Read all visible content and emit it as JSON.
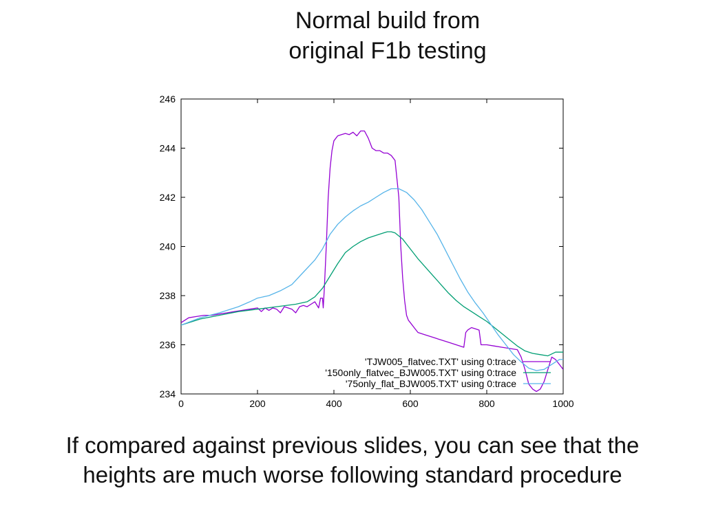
{
  "slide": {
    "title_lines": [
      "Normal build from",
      "original F1b testing"
    ],
    "caption_lines": [
      "If compared against previous slides, you can see that the",
      "heights are much worse following standard procedure"
    ]
  },
  "chart_data": {
    "type": "line",
    "title": "",
    "xlabel": "",
    "ylabel": "",
    "xlim": [
      0,
      1000
    ],
    "ylim": [
      234,
      246
    ],
    "x_ticks": [
      0,
      200,
      400,
      600,
      800,
      1000
    ],
    "x_tick_labels": [
      "0",
      "200",
      "400",
      "600",
      "800",
      "1000"
    ],
    "y_ticks": [
      234,
      236,
      238,
      240,
      242,
      244,
      246
    ],
    "y_tick_labels": [
      "234",
      "236",
      "238",
      "240",
      "242",
      "244",
      "246"
    ],
    "grid": false,
    "legend_position": "bottom-right",
    "series": [
      {
        "name": "'TJW005_flatvec.TXT' using 0:trace",
        "color": "#9400d3",
        "x": [
          0,
          20,
          40,
          60,
          80,
          100,
          120,
          140,
          160,
          180,
          200,
          210,
          220,
          230,
          240,
          250,
          260,
          270,
          280,
          290,
          300,
          310,
          320,
          330,
          340,
          350,
          360,
          365,
          370,
          372,
          375,
          380,
          385,
          390,
          395,
          400,
          410,
          420,
          430,
          440,
          450,
          460,
          470,
          480,
          490,
          500,
          510,
          520,
          530,
          540,
          550,
          560,
          570,
          575,
          580,
          585,
          590,
          595,
          600,
          610,
          620,
          640,
          660,
          680,
          700,
          720,
          740,
          745,
          750,
          760,
          770,
          780,
          785,
          790,
          800,
          820,
          840,
          860,
          880,
          890,
          900,
          910,
          920,
          930,
          940,
          950,
          960,
          970,
          980,
          990,
          1000
        ],
        "y": [
          236.9,
          237.1,
          237.15,
          237.2,
          237.2,
          237.25,
          237.3,
          237.35,
          237.4,
          237.45,
          237.5,
          237.35,
          237.5,
          237.4,
          237.5,
          237.45,
          237.3,
          237.55,
          237.5,
          237.45,
          237.3,
          237.55,
          237.6,
          237.55,
          237.65,
          237.75,
          237.5,
          237.9,
          237.9,
          237.5,
          238.3,
          240.0,
          242.0,
          243.2,
          243.9,
          244.3,
          244.5,
          244.55,
          244.6,
          244.55,
          244.65,
          244.5,
          244.7,
          244.7,
          244.4,
          244.0,
          243.9,
          243.9,
          243.8,
          243.8,
          243.7,
          243.5,
          242.0,
          240.0,
          238.7,
          237.8,
          237.2,
          237.0,
          236.9,
          236.7,
          236.5,
          236.4,
          236.3,
          236.2,
          236.1,
          236.0,
          235.9,
          236.5,
          236.6,
          236.7,
          236.65,
          236.6,
          236.0,
          236.0,
          236.0,
          235.95,
          235.9,
          235.85,
          235.8,
          235.5,
          235.0,
          234.4,
          234.2,
          234.1,
          234.2,
          234.5,
          235.0,
          235.5,
          235.4,
          235.2,
          235.0
        ]
      },
      {
        "name": "'150only_flatvec_BJW005.TXT' using 0:trace",
        "color": "#009e73",
        "x": [
          0,
          50,
          100,
          150,
          200,
          250,
          300,
          330,
          350,
          370,
          390,
          410,
          430,
          450,
          470,
          490,
          510,
          530,
          540,
          550,
          560,
          580,
          600,
          620,
          640,
          660,
          680,
          700,
          720,
          740,
          760,
          780,
          800,
          820,
          840,
          860,
          880,
          900,
          920,
          940,
          960,
          980,
          1000
        ],
        "y": [
          236.8,
          237.05,
          237.2,
          237.35,
          237.45,
          237.55,
          237.65,
          237.75,
          237.95,
          238.3,
          238.8,
          239.3,
          239.75,
          240.0,
          240.2,
          240.35,
          240.45,
          240.55,
          240.6,
          240.6,
          240.55,
          240.3,
          239.9,
          239.5,
          239.15,
          238.8,
          238.45,
          238.1,
          237.8,
          237.55,
          237.35,
          237.15,
          236.95,
          236.7,
          236.45,
          236.2,
          235.95,
          235.75,
          235.65,
          235.6,
          235.55,
          235.7,
          235.7
        ]
      },
      {
        "name": "'75only_flat_BJW005.TXT' using 0:trace",
        "color": "#56b4e9",
        "x": [
          0,
          50,
          100,
          150,
          180,
          200,
          230,
          260,
          290,
          320,
          350,
          370,
          390,
          410,
          430,
          450,
          470,
          490,
          510,
          530,
          550,
          570,
          590,
          610,
          630,
          650,
          670,
          690,
          710,
          730,
          750,
          770,
          790,
          810,
          830,
          850,
          870,
          890,
          910,
          930,
          950,
          970,
          990,
          1000
        ],
        "y": [
          236.8,
          237.1,
          237.3,
          237.55,
          237.75,
          237.9,
          238.0,
          238.2,
          238.45,
          238.95,
          239.45,
          239.9,
          240.5,
          240.9,
          241.2,
          241.45,
          241.65,
          241.8,
          242.0,
          242.2,
          242.35,
          242.35,
          242.2,
          241.9,
          241.5,
          241.0,
          240.5,
          239.9,
          239.3,
          238.7,
          238.15,
          237.7,
          237.3,
          236.85,
          236.4,
          236.0,
          235.6,
          235.3,
          235.05,
          234.95,
          235.0,
          235.2,
          235.4,
          235.4
        ]
      }
    ]
  }
}
